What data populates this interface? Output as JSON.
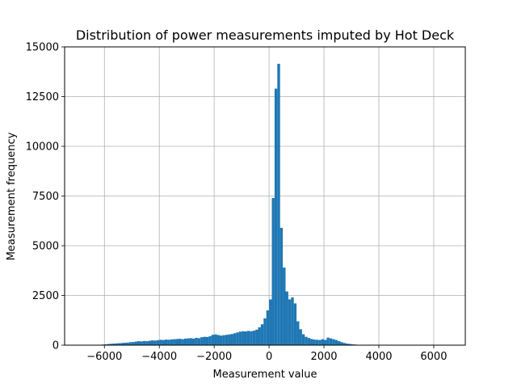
{
  "chart_data": {
    "type": "bar",
    "title": "Distribution of power measurements imputed by Hot Deck",
    "xlabel": "Measurement value",
    "ylabel": "Measurement frequency",
    "xlim": [
      -7450,
      7150
    ],
    "ylim": [
      0,
      15000
    ],
    "grid": true,
    "bar_color": "#1f77b4",
    "x_ticks": [
      -6000,
      -4000,
      -2000,
      0,
      2000,
      4000,
      6000
    ],
    "x_tick_labels": [
      "−6000",
      "−4000",
      "−2000",
      "0",
      "2000",
      "4000",
      "6000"
    ],
    "y_ticks": [
      0,
      2500,
      5000,
      7500,
      10000,
      12500,
      15000
    ],
    "y_tick_labels": [
      "0",
      "2500",
      "5000",
      "7500",
      "10000",
      "12500",
      "15000"
    ],
    "bin_width": 100,
    "bins": [
      {
        "x": -6400,
        "y": 10
      },
      {
        "x": -6300,
        "y": 15
      },
      {
        "x": -6200,
        "y": 20
      },
      {
        "x": -6100,
        "y": 30
      },
      {
        "x": -6000,
        "y": 40
      },
      {
        "x": -5900,
        "y": 60
      },
      {
        "x": -5800,
        "y": 70
      },
      {
        "x": -5700,
        "y": 80
      },
      {
        "x": -5600,
        "y": 90
      },
      {
        "x": -5500,
        "y": 100
      },
      {
        "x": -5400,
        "y": 110
      },
      {
        "x": -5300,
        "y": 120
      },
      {
        "x": -5200,
        "y": 130
      },
      {
        "x": -5100,
        "y": 150
      },
      {
        "x": -5000,
        "y": 160
      },
      {
        "x": -4900,
        "y": 180
      },
      {
        "x": -4800,
        "y": 200
      },
      {
        "x": -4700,
        "y": 190
      },
      {
        "x": -4600,
        "y": 210
      },
      {
        "x": -4500,
        "y": 200
      },
      {
        "x": -4400,
        "y": 220
      },
      {
        "x": -4300,
        "y": 240
      },
      {
        "x": -4200,
        "y": 230
      },
      {
        "x": -4100,
        "y": 250
      },
      {
        "x": -4000,
        "y": 270
      },
      {
        "x": -3900,
        "y": 260
      },
      {
        "x": -3800,
        "y": 280
      },
      {
        "x": -3700,
        "y": 270
      },
      {
        "x": -3600,
        "y": 290
      },
      {
        "x": -3500,
        "y": 300
      },
      {
        "x": -3400,
        "y": 310
      },
      {
        "x": -3300,
        "y": 320
      },
      {
        "x": -3200,
        "y": 300
      },
      {
        "x": -3100,
        "y": 330
      },
      {
        "x": -3000,
        "y": 340
      },
      {
        "x": -2900,
        "y": 350
      },
      {
        "x": -2800,
        "y": 330
      },
      {
        "x": -2700,
        "y": 370
      },
      {
        "x": -2600,
        "y": 350
      },
      {
        "x": -2500,
        "y": 400
      },
      {
        "x": -2400,
        "y": 420
      },
      {
        "x": -2300,
        "y": 410
      },
      {
        "x": -2200,
        "y": 450
      },
      {
        "x": -2100,
        "y": 520
      },
      {
        "x": -2000,
        "y": 540
      },
      {
        "x": -1900,
        "y": 510
      },
      {
        "x": -1800,
        "y": 480
      },
      {
        "x": -1700,
        "y": 500
      },
      {
        "x": -1600,
        "y": 520
      },
      {
        "x": -1500,
        "y": 540
      },
      {
        "x": -1400,
        "y": 560
      },
      {
        "x": -1300,
        "y": 600
      },
      {
        "x": -1200,
        "y": 640
      },
      {
        "x": -1100,
        "y": 680
      },
      {
        "x": -1000,
        "y": 700
      },
      {
        "x": -900,
        "y": 690
      },
      {
        "x": -800,
        "y": 720
      },
      {
        "x": -700,
        "y": 700
      },
      {
        "x": -600,
        "y": 730
      },
      {
        "x": -500,
        "y": 780
      },
      {
        "x": -400,
        "y": 900
      },
      {
        "x": -300,
        "y": 1050
      },
      {
        "x": -200,
        "y": 1350
      },
      {
        "x": -100,
        "y": 1750
      },
      {
        "x": 0,
        "y": 2300
      },
      {
        "x": 100,
        "y": 7400
      },
      {
        "x": 200,
        "y": 12900
      },
      {
        "x": 300,
        "y": 14150
      },
      {
        "x": 400,
        "y": 5900
      },
      {
        "x": 500,
        "y": 3900
      },
      {
        "x": 600,
        "y": 2700
      },
      {
        "x": 700,
        "y": 2300
      },
      {
        "x": 800,
        "y": 2400
      },
      {
        "x": 900,
        "y": 2100
      },
      {
        "x": 1000,
        "y": 1200
      },
      {
        "x": 1100,
        "y": 800
      },
      {
        "x": 1200,
        "y": 550
      },
      {
        "x": 1300,
        "y": 420
      },
      {
        "x": 1400,
        "y": 360
      },
      {
        "x": 1500,
        "y": 310
      },
      {
        "x": 1600,
        "y": 280
      },
      {
        "x": 1700,
        "y": 270
      },
      {
        "x": 1800,
        "y": 260
      },
      {
        "x": 1900,
        "y": 300
      },
      {
        "x": 2000,
        "y": 260
      },
      {
        "x": 2100,
        "y": 380
      },
      {
        "x": 2200,
        "y": 340
      },
      {
        "x": 2300,
        "y": 300
      },
      {
        "x": 2400,
        "y": 260
      },
      {
        "x": 2500,
        "y": 200
      },
      {
        "x": 2600,
        "y": 150
      },
      {
        "x": 2700,
        "y": 110
      },
      {
        "x": 2800,
        "y": 80
      },
      {
        "x": 2900,
        "y": 60
      },
      {
        "x": 3000,
        "y": 40
      },
      {
        "x": 3100,
        "y": 30
      },
      {
        "x": 3200,
        "y": 20
      },
      {
        "x": 3300,
        "y": 15
      },
      {
        "x": 3400,
        "y": 10
      },
      {
        "x": 3500,
        "y": 8
      },
      {
        "x": 3600,
        "y": 6
      },
      {
        "x": 3700,
        "y": 5
      },
      {
        "x": 3800,
        "y": 4
      },
      {
        "x": 3900,
        "y": 3
      },
      {
        "x": 4000,
        "y": 3
      },
      {
        "x": 4100,
        "y": 2
      }
    ]
  }
}
